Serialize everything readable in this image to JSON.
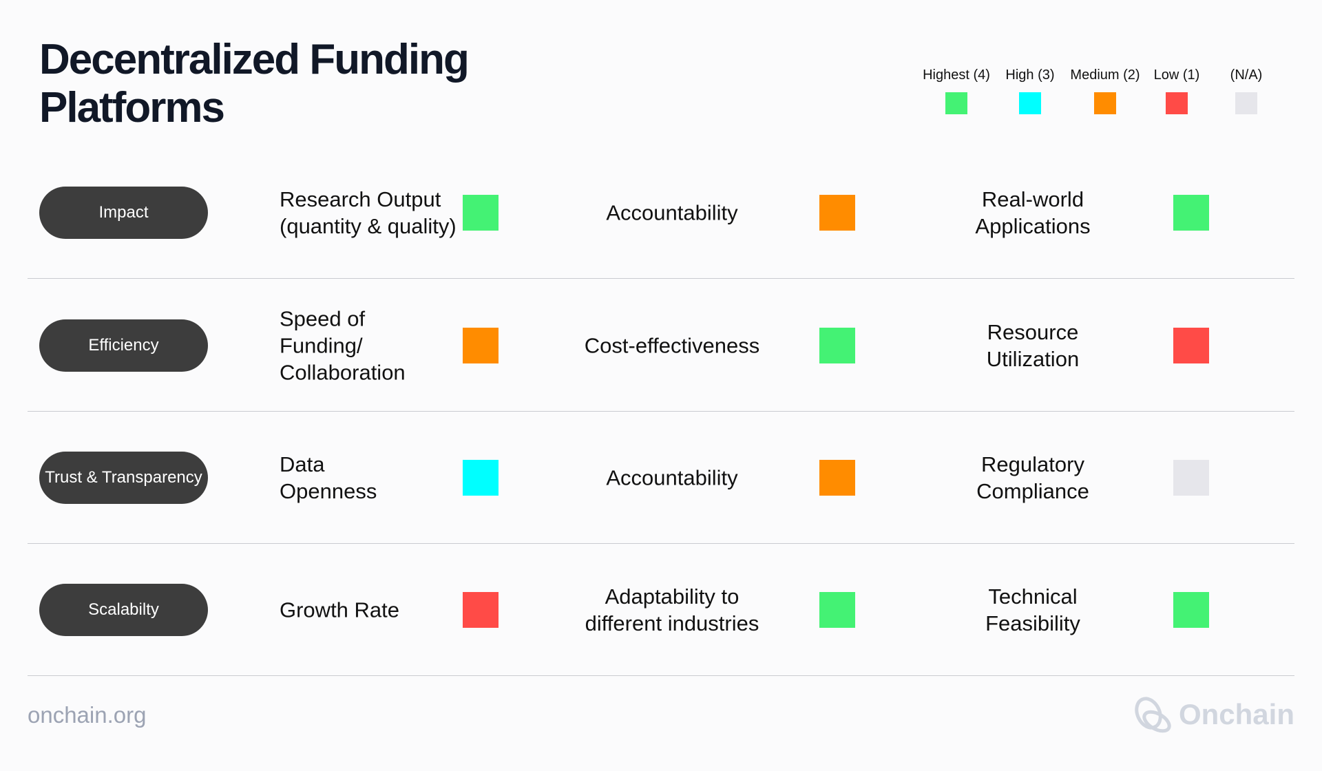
{
  "title": "Decentralized Funding Platforms",
  "legend": [
    {
      "label": "Highest (4)",
      "color": "#44f274"
    },
    {
      "label": "High (3)",
      "color": "#00ffff"
    },
    {
      "label": "Medium (2)",
      "color": "#ff8c00"
    },
    {
      "label": "Low (1)",
      "color": "#ff4b47"
    },
    {
      "label": "(N/A)",
      "color": "#e6e6eb"
    }
  ],
  "rows": [
    {
      "category": "Impact",
      "metrics": [
        {
          "label": "Research Output (quantity & quality)",
          "rating": "Highest (4)"
        },
        {
          "label": "Accountability",
          "rating": "Medium (2)"
        },
        {
          "label": "Real-world Applications",
          "rating": "Highest (4)"
        }
      ]
    },
    {
      "category": "Efficiency",
      "metrics": [
        {
          "label": "Speed of Funding/ Collaboration",
          "rating": "Medium (2)"
        },
        {
          "label": "Cost-effectiveness",
          "rating": "Highest (4)"
        },
        {
          "label": "Resource Utilization",
          "rating": "Low (1)"
        }
      ]
    },
    {
      "category": "Trust & Transparency",
      "metrics": [
        {
          "label": "Data Openness",
          "rating": "High (3)"
        },
        {
          "label": "Accountability",
          "rating": "Medium (2)"
        },
        {
          "label": "Regulatory Compliance",
          "rating": "(N/A)"
        }
      ]
    },
    {
      "category": "Scalabilty",
      "metrics": [
        {
          "label": "Growth Rate",
          "rating": "Low (1)"
        },
        {
          "label": "Adaptability to different industries",
          "rating": "Highest (4)"
        },
        {
          "label": "Technical Feasibility",
          "rating": "Highest (4)"
        }
      ]
    }
  ],
  "footer": {
    "url": "onchain.org",
    "logo_text": "Onchain",
    "logo_icon": "onchain-knot-icon"
  }
}
